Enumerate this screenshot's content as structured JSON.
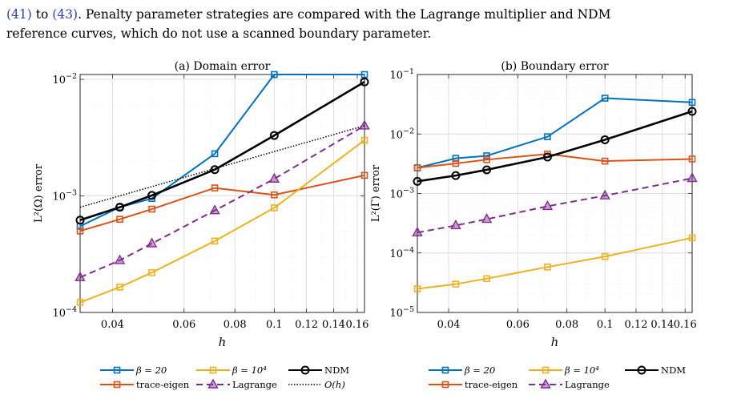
{
  "intro": {
    "ref1": "(41)",
    "to": " to ",
    "ref2": "(43)",
    "line1_rest": ". Penalty parameter strategies are compared with the Lagrange multiplier and NDM",
    "line2": "reference curves, which do not use a scanned boundary parameter."
  },
  "colors": {
    "beta20": "#0072BD",
    "trace": "#D95319",
    "beta1e4": "#EDB120",
    "lagrange": "#7E2F8E",
    "ndm": "#000000"
  },
  "chart_data": [
    {
      "type": "line",
      "title": "(a) Domain error",
      "xlabel": "h",
      "ylabel": "L²(Ω) error",
      "xscale": "log",
      "yscale": "log",
      "xlim": [
        0.0333,
        0.1667
      ],
      "ylim": [
        0.0001,
        0.011
      ],
      "grid": true,
      "x_ticks": [
        "0.04",
        "0.06",
        "0.08",
        "0.1",
        "0.12",
        "0.14",
        "0.16"
      ],
      "y_ticks": [
        "10^-4",
        "10^-3",
        "10^-2"
      ],
      "x": [
        0.0333,
        0.0417,
        0.05,
        0.0714,
        0.1,
        0.1667
      ],
      "series": [
        {
          "name": "β = 20",
          "color_key": "beta20",
          "marker": "square",
          "dash": "solid",
          "values": [
            0.00055,
            0.0008,
            0.00095,
            0.0023,
            0.011,
            0.011
          ]
        },
        {
          "name": "trace-eigen",
          "color_key": "trace",
          "marker": "square",
          "dash": "solid",
          "values": [
            0.0005,
            0.00063,
            0.00077,
            0.00117,
            0.00102,
            0.0015
          ]
        },
        {
          "name": "β = 10⁴",
          "color_key": "beta1e4",
          "marker": "square",
          "dash": "solid",
          "values": [
            0.000122,
            0.000165,
            0.00022,
            0.00041,
            0.00079,
            0.003
          ]
        },
        {
          "name": "Lagrange",
          "color_key": "lagrange",
          "marker": "triangle",
          "dash": "dashed",
          "values": [
            0.0002,
            0.00028,
            0.00039,
            0.00075,
            0.0014,
            0.004
          ]
        },
        {
          "name": "NDM",
          "color_key": "ndm",
          "marker": "circle",
          "dash": "solid",
          "values": [
            0.00062,
            0.0008,
            0.00101,
            0.00168,
            0.0033,
            0.0095
          ]
        },
        {
          "name": "O(h)",
          "color_key": "ndm",
          "marker": "none",
          "dash": "dotted",
          "values": [
            0.0008,
            null,
            null,
            null,
            null,
            0.004
          ]
        }
      ],
      "legend": {
        "placement": "below",
        "entries": [
          {
            "label": "β = 20",
            "series": 0
          },
          {
            "label": "β = 10⁴",
            "series": 2
          },
          {
            "label": "NDM",
            "series": 4
          },
          {
            "label": "trace-eigen",
            "series": 1
          },
          {
            "label": "Lagrange",
            "series": 3
          },
          {
            "label": "O(h)",
            "series": 5
          }
        ]
      }
    },
    {
      "type": "line",
      "title": "(b) Boundary error",
      "xlabel": "h",
      "ylabel": "L²(Γ) error",
      "xscale": "log",
      "yscale": "log",
      "xlim": [
        0.0333,
        0.1667
      ],
      "ylim": [
        1e-05,
        0.1
      ],
      "grid": true,
      "x_ticks": [
        "0.04",
        "0.06",
        "0.08",
        "0.1",
        "0.12",
        "0.14",
        "0.16"
      ],
      "y_ticks": [
        "10^-5",
        "10^-4",
        "10^-3",
        "10^-2",
        "10^-1"
      ],
      "x": [
        0.0333,
        0.0417,
        0.05,
        0.0714,
        0.1,
        0.1667
      ],
      "series": [
        {
          "name": "β = 20",
          "color_key": "beta20",
          "marker": "square",
          "dash": "solid",
          "values": [
            0.0027,
            0.0039,
            0.0043,
            0.009,
            0.04,
            0.034
          ]
        },
        {
          "name": "trace-eigen",
          "color_key": "trace",
          "marker": "square",
          "dash": "solid",
          "values": [
            0.0027,
            0.0032,
            0.0037,
            0.0046,
            0.0035,
            0.0038
          ]
        },
        {
          "name": "β = 10⁴",
          "color_key": "beta1e4",
          "marker": "square",
          "dash": "solid",
          "values": [
            2.5e-05,
            3e-05,
            3.7e-05,
            5.8e-05,
            8.7e-05,
            0.00018
          ]
        },
        {
          "name": "Lagrange",
          "color_key": "lagrange",
          "marker": "triangle",
          "dash": "dashed",
          "values": [
            0.00022,
            0.00029,
            0.00037,
            0.00061,
            0.00092,
            0.0018
          ]
        },
        {
          "name": "NDM",
          "color_key": "ndm",
          "marker": "circle",
          "dash": "solid",
          "values": [
            0.0016,
            0.002,
            0.0025,
            0.0041,
            0.008,
            0.024
          ]
        }
      ],
      "legend": {
        "placement": "below",
        "entries": [
          {
            "label": "β = 20",
            "series": 0
          },
          {
            "label": "β = 10⁴",
            "series": 2
          },
          {
            "label": "NDM",
            "series": 4
          },
          {
            "label": "trace-eigen",
            "series": 1
          },
          {
            "label": "Lagrange",
            "series": 3
          }
        ]
      }
    }
  ]
}
